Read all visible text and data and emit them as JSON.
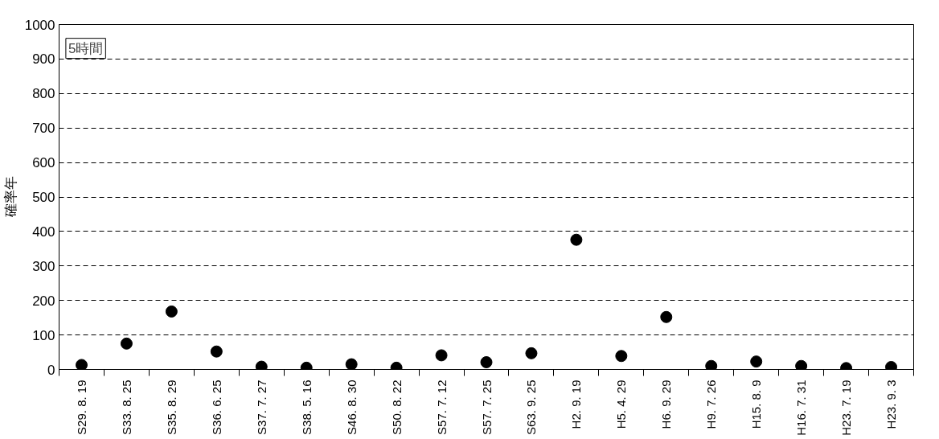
{
  "chart_data": {
    "type": "scatter",
    "ylabel": "確率年",
    "categories": [
      "S29. 8. 19",
      "S33. 8. 25",
      "S35. 8. 29",
      "S36. 6. 25",
      "S37. 7. 27",
      "S38. 5. 16",
      "S46. 8. 30",
      "S50. 8. 22",
      "S57. 7. 12",
      "S57. 7. 25",
      "S63. 9. 25",
      "H2. 9. 19",
      "H5. 4. 29",
      "H6. 9. 29",
      "H9. 7. 26",
      "H15. 8. 9",
      "H16. 7. 31",
      "H23. 7. 19",
      "H23. 9. 3"
    ],
    "values": [
      13,
      75,
      168,
      52,
      8,
      5,
      15,
      5,
      41,
      21,
      47,
      376,
      39,
      152,
      10,
      23,
      10,
      4,
      7
    ],
    "color": "#000000",
    "marker": "circle",
    "ylim": [
      0,
      1000
    ],
    "yticks": [
      0,
      100,
      200,
      300,
      400,
      500,
      600,
      700,
      800,
      900,
      1000
    ],
    "grid": "y",
    "annotations": [
      "5時間"
    ]
  }
}
